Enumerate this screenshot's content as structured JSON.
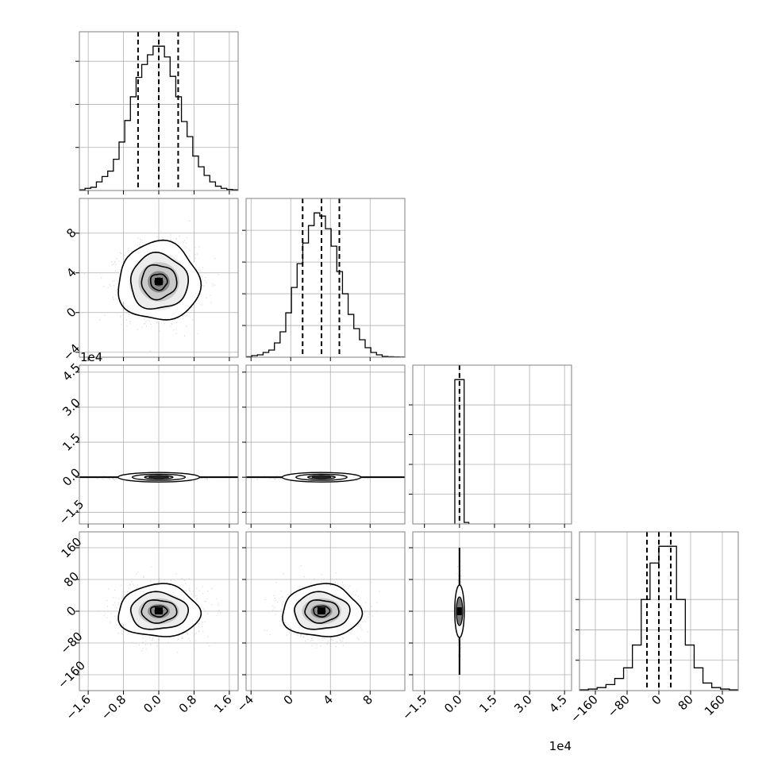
{
  "chart_data": {
    "type": "corner",
    "grid": true,
    "parameters": [
      {
        "range": [
          -1.8,
          1.8
        ],
        "ticks": [
          -1.6,
          -0.8,
          0.0,
          0.8,
          1.6
        ],
        "tick_labels": [
          "−1.6",
          "−0.8",
          "0.0",
          "0.8",
          "1.6"
        ],
        "quantiles": [
          -0.47,
          0.0,
          0.44
        ],
        "hist": [
          0.3,
          1,
          1.5,
          4,
          6.5,
          9,
          14.5,
          22.5,
          32.5,
          43.5,
          52.5,
          58.5,
          63,
          67,
          67,
          62,
          53,
          43.5,
          32,
          25,
          16,
          11,
          7,
          4,
          2,
          1,
          0.5,
          0.3
        ],
        "hist_ticks": [
          20,
          40,
          60
        ]
      },
      {
        "range": [
          -4.5,
          11.5
        ],
        "ticks": [
          -4,
          0,
          4,
          8
        ],
        "tick_labels": [
          "−4",
          "0",
          "4",
          "8"
        ],
        "quantiles": [
          1.2,
          3.1,
          4.9
        ],
        "hist": [
          0.3,
          1,
          1.5,
          3,
          4.5,
          9,
          16,
          28,
          44,
          59,
          72,
          83,
          91,
          89,
          81,
          70,
          54,
          40,
          27,
          18,
          11,
          6,
          3,
          1.5,
          0.5,
          0.3,
          0.2,
          0.1
        ],
        "hist_ticks": [
          20,
          40,
          60,
          80
        ]
      },
      {
        "range": [
          -20000,
          48000
        ],
        "ticks": [
          -15000,
          0,
          15000,
          30000,
          45000
        ],
        "tick_labels": [
          "−1.5",
          "0.0",
          "1.5",
          "3.0",
          "4.5"
        ],
        "offset_text": "1e4",
        "quantiles": [
          0
        ],
        "hist_edges": [
          -2000,
          0,
          2000,
          4000
        ],
        "hist": [
          97,
          97,
          1
        ],
        "hist_ticks": [
          20,
          40,
          60,
          80
        ]
      },
      {
        "range": [
          -200,
          200
        ],
        "ticks": [
          -160,
          -80,
          0,
          80,
          160
        ],
        "tick_labels": [
          "−160",
          "−80",
          "0",
          "80",
          "160"
        ],
        "quantiles": [
          -30,
          0,
          30
        ],
        "hist": [
          0.5,
          1,
          2,
          4,
          8,
          15,
          30,
          60,
          84,
          95,
          95,
          60,
          30,
          15,
          5,
          2,
          1,
          0.5
        ],
        "hist_ticks": [
          20,
          40,
          60
        ]
      }
    ],
    "pairs": [
      {
        "row": 1,
        "col": 0,
        "mean": [
          0.0,
          3.1
        ],
        "sigma": [
          0.42,
          1.8
        ],
        "shape": "ellipse"
      },
      {
        "row": 2,
        "col": 0,
        "mean": [
          0.0,
          0
        ],
        "sigma": [
          0.42,
          600
        ],
        "shape": "flat"
      },
      {
        "row": 2,
        "col": 1,
        "mean": [
          3.1,
          0
        ],
        "sigma": [
          1.8,
          600
        ],
        "shape": "flat"
      },
      {
        "row": 3,
        "col": 0,
        "mean": [
          0.0,
          0
        ],
        "sigma": [
          0.42,
          30
        ],
        "shape": "ellipse"
      },
      {
        "row": 3,
        "col": 1,
        "mean": [
          3.1,
          0
        ],
        "sigma": [
          1.8,
          30
        ],
        "shape": "ellipse"
      },
      {
        "row": 3,
        "col": 2,
        "mean": [
          0,
          0
        ],
        "sigma": [
          400,
          30
        ],
        "shape": "narrow"
      }
    ],
    "colors": {
      "line": "#000000",
      "grid": "#b0b0b0",
      "points": "#bdbdbd",
      "frame": "#808080"
    }
  }
}
